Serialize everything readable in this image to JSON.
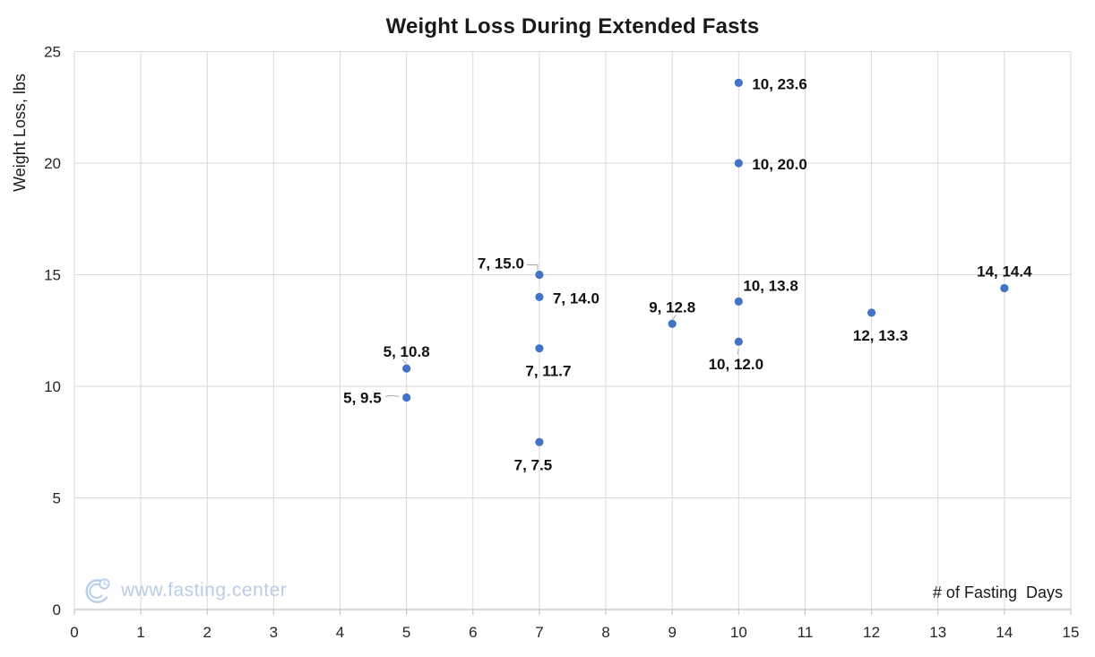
{
  "chart_data": {
    "type": "scatter",
    "title": "Weight Loss During Extended Fasts",
    "xlabel": "# of Fasting  Days",
    "ylabel": "Weight Loss, lbs",
    "xlim": [
      0,
      15
    ],
    "ylim": [
      0,
      25
    ],
    "x_ticks": [
      0,
      1,
      2,
      3,
      4,
      5,
      6,
      7,
      8,
      9,
      10,
      11,
      12,
      13,
      14,
      15
    ],
    "y_ticks": [
      0,
      5,
      10,
      15,
      20,
      25
    ],
    "grid": true,
    "legend": false,
    "point_color": "#4472c4",
    "points": [
      {
        "x": 5,
        "y": 9.5,
        "label": "5, 9.5",
        "pos": "left",
        "leader": "h"
      },
      {
        "x": 5,
        "y": 10.8,
        "label": "5, 10.8",
        "pos": "above",
        "leader": "s"
      },
      {
        "x": 7,
        "y": 7.5,
        "label": "7, 7.5",
        "pos": "below",
        "dx": -7
      },
      {
        "x": 7,
        "y": 11.7,
        "label": "7, 11.7",
        "pos": "below",
        "dx": 10
      },
      {
        "x": 7,
        "y": 14.0,
        "label": "7, 14.0",
        "pos": "right"
      },
      {
        "x": 7,
        "y": 15.0,
        "label": "7, 15.0",
        "pos": "left-up",
        "leader": "elbow"
      },
      {
        "x": 9,
        "y": 12.8,
        "label": "9, 12.8",
        "pos": "above",
        "leader": "s2"
      },
      {
        "x": 10,
        "y": 12.0,
        "label": "10, 12.0",
        "pos": "below",
        "dx": -3,
        "leader": "v"
      },
      {
        "x": 10,
        "y": 13.8,
        "label": "10, 13.8",
        "pos": "above-right"
      },
      {
        "x": 10,
        "y": 20.0,
        "label": "10, 20.0",
        "pos": "right"
      },
      {
        "x": 10,
        "y": 23.6,
        "label": "10, 23.6",
        "pos": "right"
      },
      {
        "x": 12,
        "y": 13.3,
        "label": "12, 13.3",
        "pos": "below",
        "dx": 10
      },
      {
        "x": 14,
        "y": 14.4,
        "label": "14, 14.4",
        "pos": "above"
      }
    ]
  },
  "watermark": {
    "text": "www.fasting.center"
  },
  "colors": {
    "point": "#4472c4",
    "gridline": "#d9d9d9",
    "axis_line": "#c0c0c0",
    "tick_text": "#262626",
    "data_label": "#111111",
    "leader": "#a6a6a6",
    "watermark": "#b9cde9",
    "title": "#1a1a1a"
  }
}
